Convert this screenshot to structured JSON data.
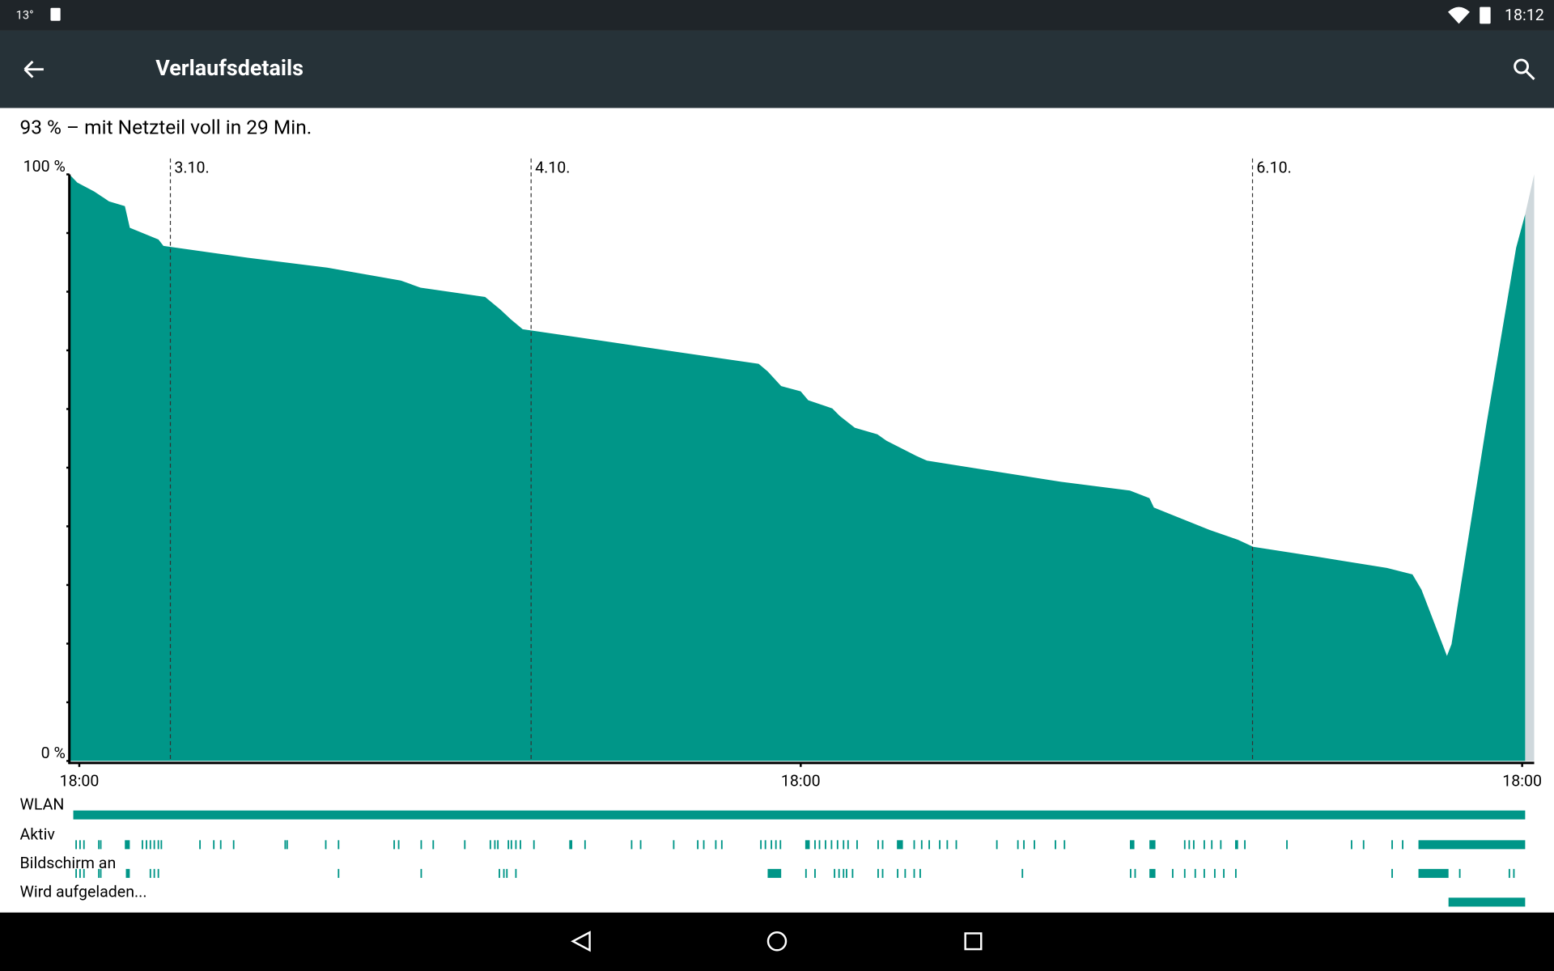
{
  "status_bar": {
    "temperature": "13°",
    "time": "18:12"
  },
  "app_bar": {
    "title": "Verlaufsdetails"
  },
  "summary": "93 % – mit Netzteil voll in 29 Min.",
  "chart_data": {
    "type": "area",
    "color": "#009688",
    "xlim": [
      -0.66,
      96.8
    ],
    "xticks": [
      {
        "value": 0,
        "label": "18:00"
      },
      {
        "value": 48,
        "label": "18:00"
      },
      {
        "value": 96,
        "label": "18:00"
      }
    ],
    "date_markers": [
      {
        "value": 6.06,
        "label": "3.10."
      },
      {
        "value": 30.06,
        "label": "4.10."
      },
      {
        "value": 78.06,
        "label": "6.10."
      }
    ],
    "ylim": [
      0,
      100
    ],
    "yticks": [
      {
        "value": 100,
        "label": "100 %"
      },
      {
        "value": 0,
        "label": "0 %"
      }
    ],
    "minor_yticks": [
      10,
      20,
      30,
      40,
      50,
      60,
      70,
      80,
      90
    ],
    "x": [
      -0.66,
      -0.13,
      0.99,
      1.98,
      3.03,
      3.36,
      5.27,
      5.6,
      11.2,
      16.5,
      21.4,
      22.7,
      27.0,
      28.0,
      28.7,
      29.5,
      34.3,
      39.6,
      45.2,
      45.8,
      46.7,
      48.0,
      48.5,
      50.1,
      50.6,
      51.6,
      53.1,
      53.7,
      55.7,
      56.4,
      60.6,
      65.3,
      69.9,
      71.2,
      71.5,
      75.2,
      77.1,
      78.1,
      82.4,
      87.0,
      88.7,
      89.3,
      91.0,
      91.3,
      93.6,
      95.6,
      96.2
    ],
    "values": [
      100,
      98.6,
      97.1,
      95.4,
      94.6,
      90.9,
      88.9,
      87.8,
      85.8,
      84.1,
      81.9,
      80.7,
      79.1,
      77.0,
      75.3,
      73.6,
      71.8,
      69.8,
      67.7,
      66.4,
      63.9,
      63.0,
      61.5,
      60.1,
      58.8,
      56.8,
      55.7,
      54.6,
      52.0,
      51.2,
      49.5,
      47.6,
      46.1,
      44.8,
      43.2,
      39.4,
      37.7,
      36.5,
      34.8,
      32.9,
      31.8,
      29.2,
      17.9,
      19.9,
      57.1,
      87.5,
      93.2
    ],
    "rows": [
      {
        "name": "WLAN",
        "intervals": [
          [
            -0.4,
            96.2
          ]
        ]
      },
      {
        "name": "Aktiv",
        "intervals": [
          [
            -0.26,
            -0.16
          ],
          [
            0,
            0.1
          ],
          [
            0.26,
            0.36
          ],
          [
            1.25,
            1.35
          ],
          [
            1.38,
            1.48
          ],
          [
            3.03,
            3.36
          ],
          [
            4.15,
            4.25
          ],
          [
            4.42,
            4.52
          ],
          [
            4.68,
            4.78
          ],
          [
            4.94,
            5.04
          ],
          [
            5.21,
            5.31
          ],
          [
            5.41,
            5.51
          ],
          [
            7.98,
            8.08
          ],
          [
            8.9,
            9.0
          ],
          [
            9.36,
            9.46
          ],
          [
            10.22,
            10.32
          ],
          [
            13.65,
            13.75
          ],
          [
            13.78,
            13.88
          ],
          [
            16.35,
            16.45
          ],
          [
            17.2,
            17.3
          ],
          [
            20.9,
            21.0
          ],
          [
            21.2,
            21.3
          ],
          [
            22.7,
            22.8
          ],
          [
            23.5,
            23.6
          ],
          [
            25.6,
            25.7
          ],
          [
            27.3,
            27.4
          ],
          [
            27.6,
            27.7
          ],
          [
            27.8,
            27.9
          ],
          [
            28.5,
            28.6
          ],
          [
            28.7,
            28.8
          ],
          [
            29.0,
            29.1
          ],
          [
            29.3,
            29.4
          ],
          [
            30.2,
            30.3
          ],
          [
            32.6,
            32.8
          ],
          [
            33.6,
            33.7
          ],
          [
            36.7,
            36.8
          ],
          [
            37.3,
            37.4
          ],
          [
            39.5,
            39.6
          ],
          [
            41.1,
            41.2
          ],
          [
            41.5,
            41.6
          ],
          [
            42.3,
            42.4
          ],
          [
            42.7,
            42.8
          ],
          [
            45.3,
            45.4
          ],
          [
            45.6,
            45.7
          ],
          [
            46.0,
            46.1
          ],
          [
            46.3,
            46.4
          ],
          [
            46.6,
            46.7
          ],
          [
            48.3,
            48.6
          ],
          [
            48.9,
            49.0
          ],
          [
            49.2,
            49.3
          ],
          [
            49.6,
            49.7
          ],
          [
            50.0,
            50.1
          ],
          [
            50.4,
            50.5
          ],
          [
            50.8,
            50.9
          ],
          [
            51.1,
            51.2
          ],
          [
            51.7,
            51.8
          ],
          [
            53.1,
            53.2
          ],
          [
            53.4,
            53.5
          ],
          [
            54.4,
            54.8
          ],
          [
            55.5,
            55.6
          ],
          [
            56.0,
            56.1
          ],
          [
            56.5,
            56.6
          ],
          [
            57.2,
            57.3
          ],
          [
            57.7,
            57.8
          ],
          [
            58.3,
            58.4
          ],
          [
            61.0,
            61.1
          ],
          [
            62.4,
            62.5
          ],
          [
            62.8,
            62.9
          ],
          [
            63.5,
            63.6
          ],
          [
            64.9,
            65.0
          ],
          [
            65.5,
            65.6
          ],
          [
            69.9,
            70.2
          ],
          [
            71.2,
            71.6
          ],
          [
            73.5,
            73.6
          ],
          [
            73.8,
            73.9
          ],
          [
            74.1,
            74.2
          ],
          [
            74.8,
            74.9
          ],
          [
            75.3,
            75.4
          ],
          [
            75.9,
            76.0
          ],
          [
            76.9,
            77.1
          ],
          [
            77.5,
            77.6
          ],
          [
            80.3,
            80.4
          ],
          [
            84.6,
            84.7
          ],
          [
            85.4,
            85.5
          ],
          [
            87.3,
            87.4
          ],
          [
            88.0,
            88.1
          ],
          [
            89.1,
            96.2
          ]
        ]
      },
      {
        "name": "Bildschirm an",
        "intervals": [
          [
            -0.26,
            -0.16
          ],
          [
            0,
            0.1
          ],
          [
            0.26,
            0.36
          ],
          [
            1.25,
            1.35
          ],
          [
            1.38,
            1.48
          ],
          [
            3.1,
            3.36
          ],
          [
            4.68,
            4.78
          ],
          [
            4.94,
            5.04
          ],
          [
            5.21,
            5.31
          ],
          [
            17.2,
            17.3
          ],
          [
            22.7,
            22.8
          ],
          [
            27.9,
            28.0
          ],
          [
            28.2,
            28.3
          ],
          [
            28.4,
            28.5
          ],
          [
            29.0,
            29.1
          ],
          [
            45.8,
            46.7
          ],
          [
            48.3,
            48.4
          ],
          [
            48.9,
            49.0
          ],
          [
            50.2,
            50.3
          ],
          [
            50.5,
            50.6
          ],
          [
            50.8,
            50.9
          ],
          [
            51.0,
            51.1
          ],
          [
            51.4,
            51.5
          ],
          [
            53.1,
            53.2
          ],
          [
            53.4,
            53.5
          ],
          [
            54.4,
            54.5
          ],
          [
            54.9,
            55.0
          ],
          [
            55.5,
            55.6
          ],
          [
            55.9,
            56.0
          ],
          [
            62.7,
            62.8
          ],
          [
            69.9,
            70.0
          ],
          [
            70.2,
            70.3
          ],
          [
            71.2,
            71.6
          ],
          [
            72.7,
            72.8
          ],
          [
            73.5,
            73.6
          ],
          [
            74.2,
            74.3
          ],
          [
            74.8,
            74.9
          ],
          [
            75.5,
            75.6
          ],
          [
            76.1,
            76.2
          ],
          [
            76.9,
            77.0
          ],
          [
            87.3,
            87.4
          ],
          [
            89.1,
            91.1
          ],
          [
            91.8,
            91.9
          ],
          [
            95.1,
            95.2
          ],
          [
            95.4,
            95.5
          ]
        ]
      },
      {
        "name": "Wird aufgeladen...",
        "intervals": [
          [
            91.1,
            96.2
          ]
        ]
      }
    ]
  }
}
